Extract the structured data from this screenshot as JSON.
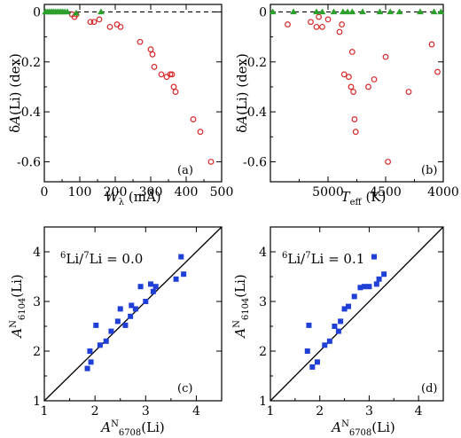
{
  "chart_data": [
    {
      "type": "scatter",
      "panel_label": "(a)",
      "xlabel": "Wλ (mÅ)",
      "ylabel": "δA(Li) (dex)",
      "xlim": [
        0,
        500
      ],
      "ylim": [
        -0.68,
        0.03
      ],
      "xticks": [
        0,
        100,
        200,
        300,
        400,
        500
      ],
      "yticks": [
        0,
        -0.2,
        -0.4,
        -0.6
      ],
      "ytick_labels": [
        "0",
        "-0.2",
        "-0.4",
        "-0.6"
      ],
      "reference_line": 0,
      "series": [
        {
          "marker": "circle-open",
          "color": "#d62728",
          "x": [
            78,
            85,
            90,
            130,
            140,
            155,
            185,
            205,
            215,
            270,
            300,
            305,
            310,
            330,
            345,
            355,
            360,
            365,
            370,
            420,
            440,
            470
          ],
          "y": [
            -0.01,
            -0.02,
            -0.01,
            -0.04,
            -0.04,
            -0.03,
            -0.06,
            -0.05,
            -0.06,
            -0.12,
            -0.15,
            -0.17,
            -0.22,
            -0.25,
            -0.26,
            -0.25,
            -0.25,
            -0.3,
            -0.32,
            -0.43,
            -0.48,
            -0.6
          ]
        },
        {
          "marker": "triangle",
          "color": "#2ca02c",
          "x": [
            3,
            8,
            13,
            18,
            22,
            27,
            32,
            37,
            42,
            47,
            52,
            58,
            65,
            90,
            160
          ],
          "y": [
            0,
            0,
            0,
            0,
            0,
            0,
            0,
            0,
            0,
            0,
            0,
            0,
            0,
            -0.005,
            0
          ]
        }
      ]
    },
    {
      "type": "scatter",
      "panel_label": "(b)",
      "xlabel": "Teff (K)",
      "ylabel": "δA(Li) (dex)",
      "xlim": [
        5500,
        4000
      ],
      "ylim": [
        -0.68,
        0.03
      ],
      "xticks": [
        5500,
        5000,
        4500,
        4000
      ],
      "tick_labels_shown": [
        5000,
        4500,
        4000
      ],
      "yticks": [
        0,
        -0.2,
        -0.4,
        -0.6
      ],
      "ytick_labels": [
        "0",
        "-0.2",
        "-0.4",
        "-0.6"
      ],
      "reference_line": 0,
      "series": [
        {
          "marker": "circle-open",
          "color": "#d62728",
          "x": [
            5350,
            5150,
            5100,
            5080,
            5050,
            5000,
            4900,
            4880,
            4860,
            4820,
            4800,
            4790,
            4780,
            4770,
            4760,
            4650,
            4600,
            4500,
            4480,
            4300,
            4100,
            4050
          ],
          "y": [
            -0.05,
            -0.04,
            -0.06,
            -0.02,
            -0.06,
            -0.03,
            -0.08,
            -0.05,
            -0.25,
            -0.26,
            -0.3,
            -0.16,
            -0.32,
            -0.43,
            -0.48,
            -0.3,
            -0.27,
            -0.18,
            -0.6,
            -0.32,
            -0.13,
            -0.24
          ]
        },
        {
          "marker": "triangle",
          "color": "#2ca02c",
          "x": [
            5480,
            5300,
            5100,
            5050,
            4950,
            4870,
            4830,
            4790,
            4700,
            4550,
            4460,
            4380,
            4200,
            4080,
            4020
          ],
          "y": [
            0,
            0,
            0,
            0,
            0,
            0,
            0,
            0,
            0,
            0,
            0,
            0,
            0,
            0,
            0
          ]
        }
      ]
    },
    {
      "type": "scatter",
      "panel_label": "(c)",
      "annotation": "6Li/7Li = 0.0",
      "xlabel": "AN6708(Li)",
      "ylabel": "AN6104(Li)",
      "xlim": [
        1,
        4.5
      ],
      "ylim": [
        1,
        4.5
      ],
      "xticks": [
        1,
        2,
        3,
        4
      ],
      "yticks": [
        1,
        2,
        3,
        4
      ],
      "identity_line": true,
      "series": [
        {
          "marker": "square",
          "color": "#1f3fd6",
          "x": [
            1.85,
            1.9,
            1.92,
            2.02,
            2.1,
            2.22,
            2.32,
            2.45,
            2.5,
            2.6,
            2.7,
            2.72,
            2.8,
            2.9,
            3.0,
            3.1,
            3.15,
            3.2,
            3.6,
            3.7,
            3.75
          ],
          "y": [
            1.65,
            2.0,
            1.78,
            2.52,
            2.12,
            2.2,
            2.4,
            2.6,
            2.85,
            2.52,
            2.7,
            2.92,
            2.85,
            3.3,
            3.0,
            3.35,
            3.2,
            3.3,
            3.45,
            3.9,
            3.55
          ]
        }
      ]
    },
    {
      "type": "scatter",
      "panel_label": "(d)",
      "annotation": "6Li/7Li = 0.1",
      "xlabel": "AN6708(Li)",
      "ylabel": "AN6104(Li)",
      "xlim": [
        1,
        4.5
      ],
      "ylim": [
        1,
        4.5
      ],
      "xticks": [
        1,
        2,
        3,
        4
      ],
      "yticks": [
        1,
        2,
        3,
        4
      ],
      "identity_line": true,
      "series": [
        {
          "marker": "square",
          "color": "#1f3fd6",
          "x": [
            1.75,
            1.78,
            1.85,
            1.95,
            2.1,
            2.2,
            2.3,
            2.38,
            2.42,
            2.5,
            2.58,
            2.7,
            2.82,
            2.9,
            3.0,
            3.1,
            3.15,
            3.2,
            3.3
          ],
          "y": [
            2.0,
            2.52,
            1.68,
            1.78,
            2.12,
            2.2,
            2.5,
            2.4,
            2.6,
            2.85,
            2.9,
            3.1,
            3.28,
            3.3,
            3.3,
            3.9,
            3.35,
            3.45,
            3.55
          ]
        }
      ]
    }
  ]
}
